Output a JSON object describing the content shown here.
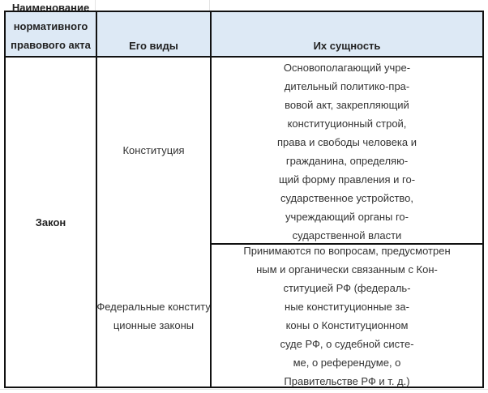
{
  "headers": {
    "col1": [
      "Наименование",
      "нормативного",
      "правового акта"
    ],
    "col2": "Его виды",
    "col3": "Их сущность"
  },
  "act": "Закон",
  "rows": [
    {
      "type": "Конституция",
      "essence": [
        "Основополагающий учре-",
        "дительный политико-пра-",
        "вовой акт, закрепляющий",
        "конституционный строй,",
        "права и свободы человека и",
        "гражданина, определяю-",
        "щий форму правления и го-",
        "сударственное устройство,",
        "учреждающий органы го-",
        "сударственной власти"
      ]
    },
    {
      "type": [
        "Федеральные конститу",
        "ционные законы"
      ],
      "essence": [
        "Принимаются по вопросам, предусмотрен",
        "ным и органически связанным с Кон-",
        "ституцией РФ (федераль-",
        "ные конституционные за-",
        "коны о Конституционном",
        "суде РФ, о судебной систе-",
        "ме, о референдуме, о",
        "Правительстве РФ и т. д.)"
      ]
    }
  ],
  "colors": {
    "header_bg": "#dde9f5",
    "border": "#111111"
  }
}
